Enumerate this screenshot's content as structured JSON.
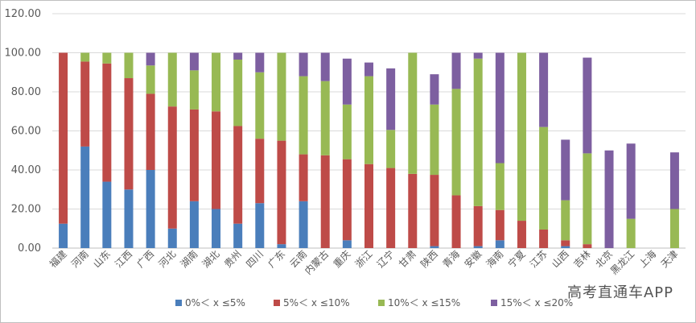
{
  "chart_data": {
    "type": "bar",
    "stacked": true,
    "title": "",
    "xlabel": "",
    "ylabel": "",
    "ylim": [
      0,
      120
    ],
    "yticks": [
      "0.00",
      "20.00",
      "40.00",
      "60.00",
      "80.00",
      "100.00",
      "120.00"
    ],
    "grid": true,
    "legend_position": "bottom",
    "categories": [
      "福建",
      "河南",
      "山东",
      "江西",
      "广西",
      "河北",
      "湖南",
      "湖北",
      "贵州",
      "四川",
      "广东",
      "云南",
      "内蒙古",
      "重庆",
      "浙江",
      "辽宁",
      "甘肃",
      "陕西",
      "青海",
      "安徽",
      "海南",
      "宁夏",
      "江苏",
      "山西",
      "吉林",
      "北京",
      "黑龙江",
      "上海",
      "天津"
    ],
    "series": [
      {
        "name": "0%＜ x ≤5%",
        "color": "#4a7ebb",
        "values": [
          12.5,
          52,
          34,
          30,
          40,
          10,
          24,
          20,
          12.5,
          23,
          2,
          24,
          0,
          4,
          0,
          0,
          0,
          1,
          0,
          1,
          4,
          0,
          0,
          1,
          0,
          0,
          0,
          0,
          0
        ]
      },
      {
        "name": "5%＜ x ≤10%",
        "color": "#be4b48",
        "values": [
          87.5,
          43.5,
          60.5,
          57,
          39,
          62.5,
          47,
          50,
          50,
          33,
          53,
          24,
          47.5,
          41.5,
          43,
          41,
          38,
          36.5,
          27,
          20.5,
          15.5,
          14,
          9.5,
          3,
          2,
          0,
          0,
          0,
          0
        ]
      },
      {
        "name": "10%＜ x ≤15%",
        "color": "#98b954",
        "values": [
          0,
          4.5,
          5.5,
          13,
          14.5,
          27.5,
          20,
          30,
          34,
          34,
          45,
          40,
          38,
          28,
          45,
          19.5,
          62,
          36,
          54.5,
          75.5,
          24,
          86,
          52.5,
          20.5,
          46.5,
          0,
          15,
          0,
          20
        ]
      },
      {
        "name": "15%＜ x ≤20%",
        "color": "#7d5fa0",
        "values": [
          0,
          0,
          0,
          0,
          6.5,
          0,
          9,
          0,
          3.5,
          10,
          0,
          12,
          14.5,
          23.5,
          7,
          31.5,
          0,
          15.5,
          18.5,
          3,
          56.5,
          0,
          38,
          31,
          49,
          50,
          38.5,
          0,
          29
        ]
      }
    ]
  },
  "watermark": "高考直通车APP"
}
